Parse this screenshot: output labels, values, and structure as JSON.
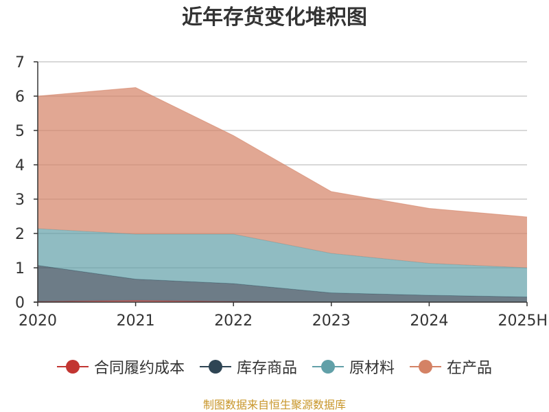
{
  "chart_data": {
    "type": "area",
    "stacked": true,
    "title": "近年存货变化堆积图",
    "categories": [
      "2020",
      "2021",
      "2022",
      "2023",
      "2024",
      "2025H"
    ],
    "ylim": [
      0,
      7
    ],
    "yticks": [
      0,
      1,
      2,
      3,
      4,
      5,
      6,
      7
    ],
    "grid": true,
    "legend_position": "bottom",
    "series": [
      {
        "name": "合同履约成本",
        "color": "#c23531",
        "values": [
          0.02,
          0.05,
          0.02,
          0.0,
          0.0,
          0.0
        ]
      },
      {
        "name": "库存商品",
        "color": "#2f4554",
        "values": [
          1.05,
          0.62,
          0.52,
          0.27,
          0.2,
          0.15
        ]
      },
      {
        "name": "原材料",
        "color": "#61a0a8",
        "values": [
          1.07,
          1.31,
          1.44,
          1.15,
          0.93,
          0.85
        ]
      },
      {
        "name": "在产品",
        "color": "#d48265",
        "values": [
          3.86,
          4.27,
          2.87,
          1.8,
          1.6,
          1.48
        ]
      }
    ]
  },
  "source_text": "制图数据来自恒生聚源数据库"
}
